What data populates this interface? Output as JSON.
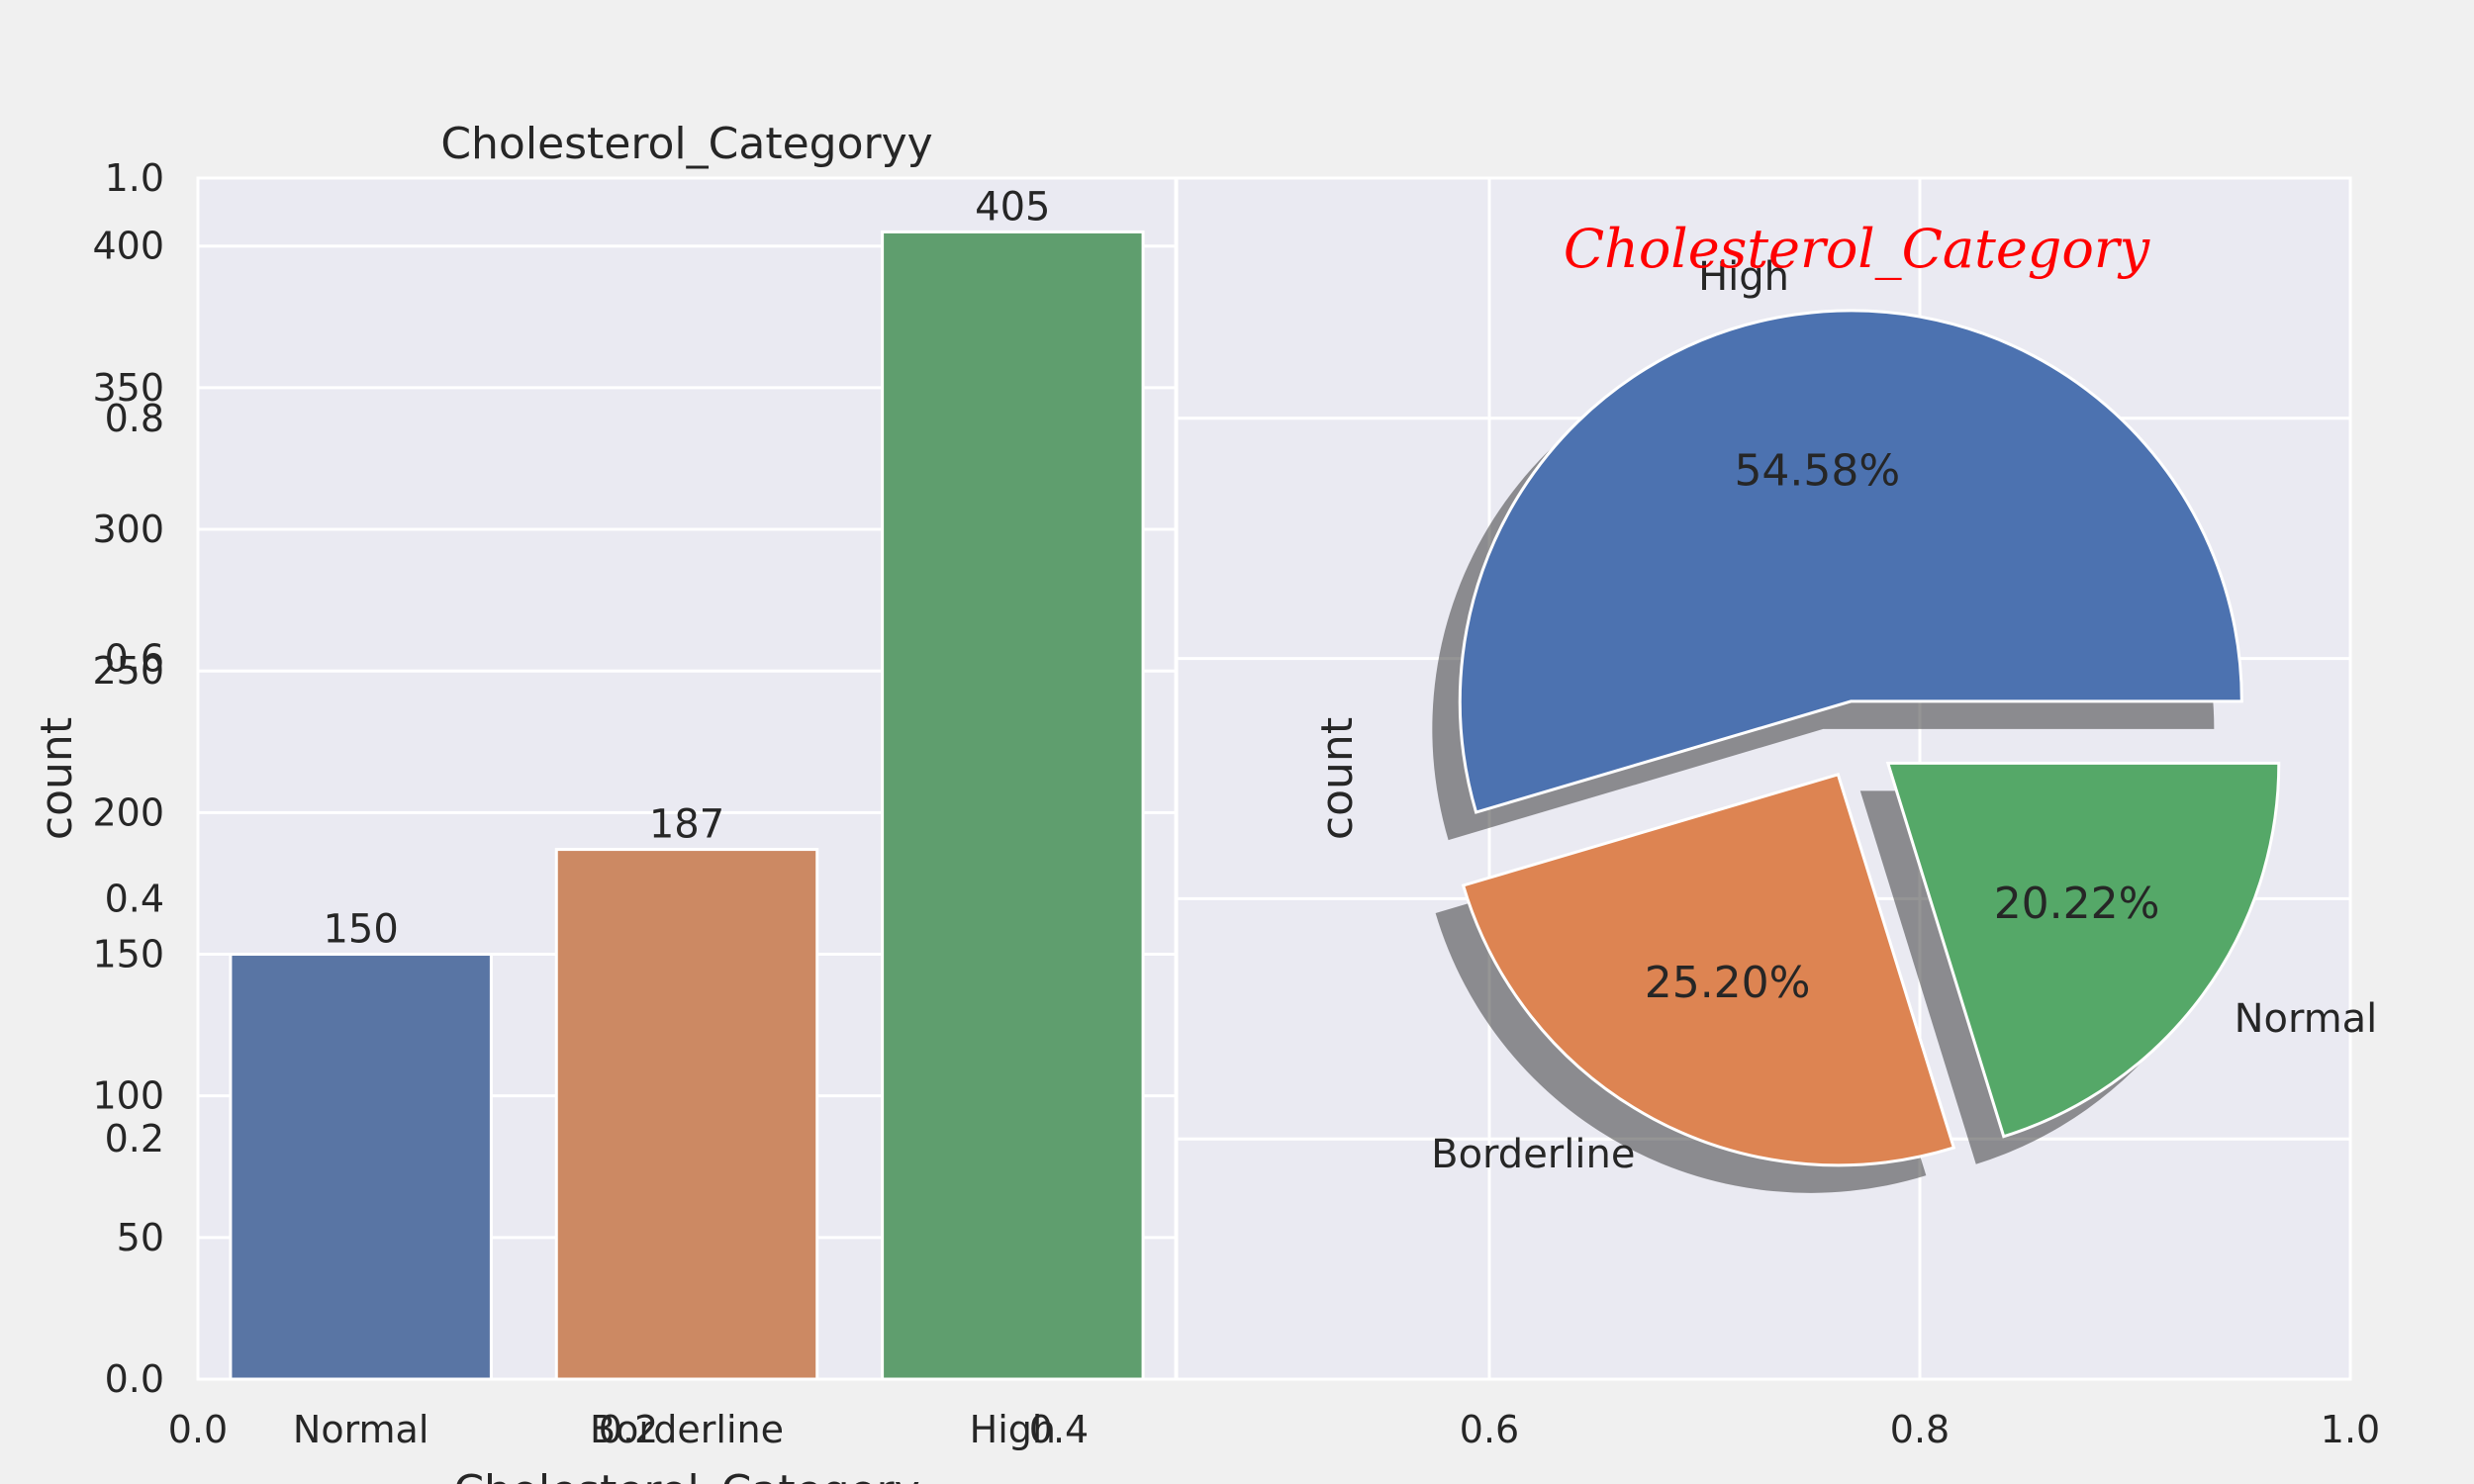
{
  "chart_data": [
    {
      "type": "bar",
      "title": "Cholesterol_Categoryy",
      "xlabel": "Cholesterol_Category",
      "ylabel": "count",
      "categories": [
        "Normal",
        "Borderline",
        "High"
      ],
      "values": [
        150,
        187,
        405
      ],
      "data_labels": [
        "150",
        "187",
        "405"
      ],
      "colors": [
        "#5975a4",
        "#cc8963",
        "#5f9e6e"
      ],
      "ylim": [
        0,
        424
      ],
      "yticks": [
        "50",
        "100",
        "150",
        "200",
        "250",
        "300",
        "350",
        "400"
      ],
      "grid": true
    },
    {
      "type": "pie",
      "title": "Cholesterol_Category",
      "ylabel": "count",
      "labels": [
        "High",
        "Borderline",
        "Normal"
      ],
      "values": [
        405,
        187,
        150
      ],
      "percent_labels": [
        "54.58%",
        "25.20%",
        "20.22%"
      ],
      "colors": [
        "#4c72b0",
        "#dd8452",
        "#55a868"
      ],
      "explode": true,
      "shadow": true,
      "title_color": "#ff0000"
    },
    {
      "type": "axes",
      "xticks": [
        "0.0",
        "0.2",
        "0.4",
        "0.6",
        "0.8",
        "1.0"
      ],
      "yticks": [
        "0.0",
        "0.2",
        "0.4",
        "0.6",
        "0.8",
        "1.0"
      ],
      "xlim": [
        0,
        1
      ],
      "ylim": [
        0,
        1
      ]
    }
  ],
  "theme": {
    "figure_bg": "#f0f0f0",
    "axes_bg": "#eaeaf2",
    "grid": "#ffffff",
    "text": "#262626"
  }
}
